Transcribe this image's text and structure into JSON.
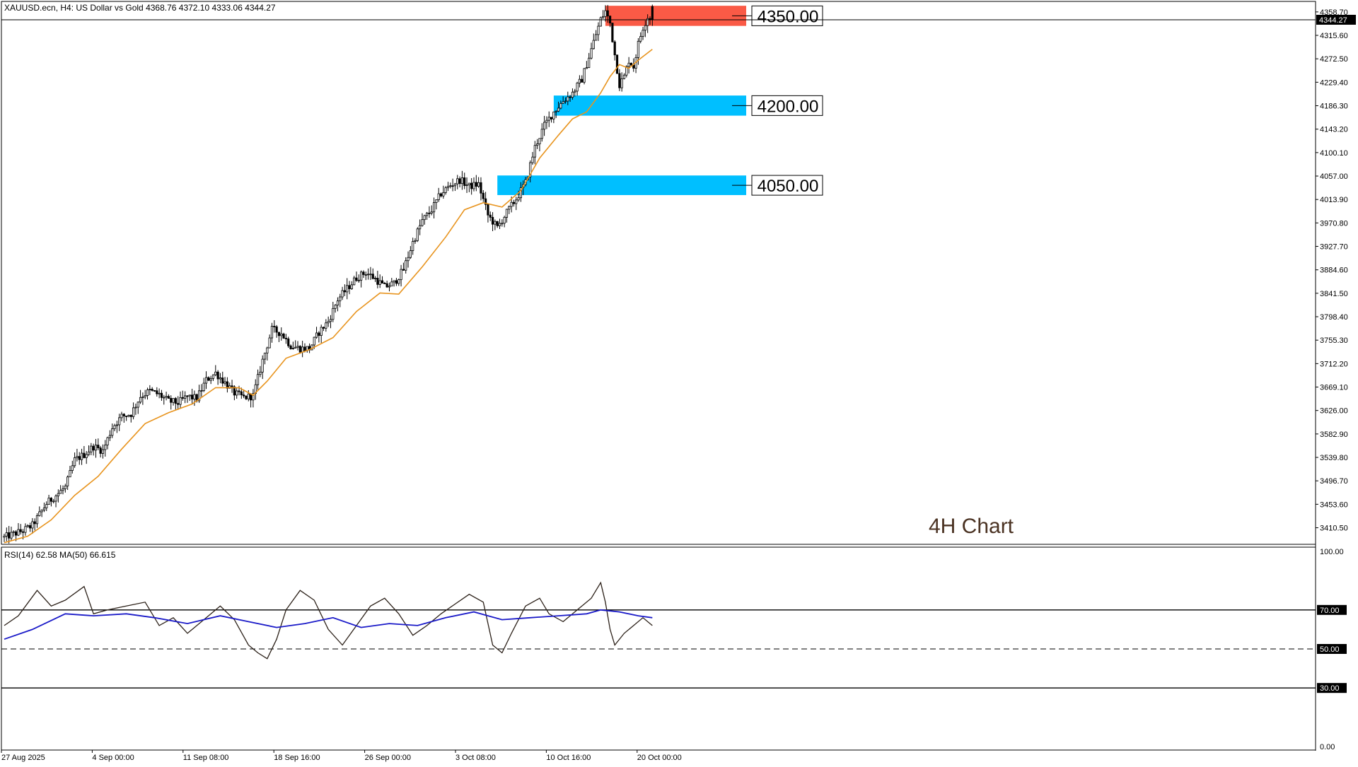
{
  "header": {
    "symbol_info": "XAUUSD.ecn, H4:  US Dollar vs Gold  4368.76 4372.10 4333.06 4344.27"
  },
  "chart_data": [
    {
      "type": "candlestick",
      "symbol": "XAUUSD.ecn",
      "timeframe": "H4",
      "ohlc": {
        "open": 4368.76,
        "high": 4372.1,
        "low": 4333.06,
        "close": 4344.27
      },
      "current_price_label": "4344.27",
      "overlay_label": "4H Chart",
      "ylim": [
        3380,
        4378
      ],
      "y_ticks": [
        "4358.70",
        "4315.60",
        "4272.50",
        "4229.40",
        "4186.30",
        "4143.20",
        "4100.10",
        "4057.00",
        "4013.90",
        "3970.80",
        "3927.70",
        "3884.60",
        "3841.50",
        "3798.40",
        "3755.30",
        "3712.20",
        "3669.10",
        "3626.00",
        "3582.90",
        "3539.80",
        "3496.70",
        "3453.60",
        "3410.50"
      ],
      "x_ticks": [
        "27 Aug 2025",
        "4 Sep 00:00",
        "11 Sep 08:00",
        "18 Sep 16:00",
        "26 Sep 00:00",
        "3 Oct 08:00",
        "10 Oct 16:00",
        "20 Oct 00:00"
      ],
      "moving_average_color": "#e8941e",
      "candle_color": "#000000",
      "close_path": [
        [
          0,
          3393
        ],
        [
          8,
          3405
        ],
        [
          12,
          3415
        ],
        [
          18,
          3455
        ],
        [
          22,
          3470
        ],
        [
          26,
          3485
        ],
        [
          30,
          3535
        ],
        [
          34,
          3545
        ],
        [
          38,
          3560
        ],
        [
          42,
          3552
        ],
        [
          46,
          3595
        ],
        [
          50,
          3615
        ],
        [
          54,
          3620
        ],
        [
          58,
          3652
        ],
        [
          62,
          3662
        ],
        [
          66,
          3655
        ],
        [
          70,
          3643
        ],
        [
          74,
          3640
        ],
        [
          78,
          3652
        ],
        [
          82,
          3648
        ],
        [
          86,
          3682
        ],
        [
          90,
          3695
        ],
        [
          94,
          3677
        ],
        [
          98,
          3658
        ],
        [
          102,
          3650
        ],
        [
          106,
          3653
        ],
        [
          110,
          3718
        ],
        [
          114,
          3775
        ],
        [
          118,
          3768
        ],
        [
          122,
          3745
        ],
        [
          126,
          3740
        ],
        [
          130,
          3740
        ],
        [
          134,
          3770
        ],
        [
          138,
          3790
        ],
        [
          142,
          3830
        ],
        [
          146,
          3850
        ],
        [
          150,
          3870
        ],
        [
          154,
          3880
        ],
        [
          158,
          3868
        ],
        [
          162,
          3853
        ],
        [
          166,
          3860
        ],
        [
          170,
          3885
        ],
        [
          174,
          3935
        ],
        [
          178,
          3975
        ],
        [
          182,
          3995
        ],
        [
          186,
          4025
        ],
        [
          190,
          4040
        ],
        [
          194,
          4050
        ],
        [
          198,
          4038
        ],
        [
          202,
          4042
        ],
        [
          206,
          3985
        ],
        [
          210,
          3962
        ],
        [
          214,
          3990
        ],
        [
          218,
          4015
        ],
        [
          222,
          4045
        ],
        [
          226,
          4110
        ],
        [
          230,
          4150
        ],
        [
          234,
          4175
        ],
        [
          238,
          4195
        ],
        [
          242,
          4210
        ],
        [
          246,
          4235
        ],
        [
          250,
          4290
        ],
        [
          254,
          4345
        ],
        [
          256,
          4360
        ],
        [
          258,
          4338
        ],
        [
          260,
          4280
        ],
        [
          262,
          4225
        ],
        [
          264,
          4240
        ],
        [
          266,
          4270
        ],
        [
          268,
          4258
        ],
        [
          270,
          4300
        ],
        [
          272,
          4330
        ],
        [
          274,
          4350
        ],
        [
          276,
          4344
        ]
      ],
      "ma_path": [
        [
          0,
          3383
        ],
        [
          10,
          3395
        ],
        [
          20,
          3425
        ],
        [
          30,
          3470
        ],
        [
          40,
          3505
        ],
        [
          50,
          3555
        ],
        [
          60,
          3602
        ],
        [
          70,
          3622
        ],
        [
          80,
          3638
        ],
        [
          90,
          3668
        ],
        [
          100,
          3668
        ],
        [
          106,
          3654
        ],
        [
          112,
          3680
        ],
        [
          120,
          3722
        ],
        [
          130,
          3738
        ],
        [
          140,
          3760
        ],
        [
          150,
          3808
        ],
        [
          160,
          3842
        ],
        [
          168,
          3840
        ],
        [
          178,
          3890
        ],
        [
          188,
          3945
        ],
        [
          196,
          3995
        ],
        [
          204,
          4008
        ],
        [
          212,
          4000
        ],
        [
          220,
          4030
        ],
        [
          228,
          4090
        ],
        [
          236,
          4132
        ],
        [
          242,
          4162
        ],
        [
          248,
          4175
        ],
        [
          254,
          4210
        ],
        [
          258,
          4240
        ],
        [
          262,
          4262
        ],
        [
          266,
          4255
        ],
        [
          270,
          4270
        ],
        [
          276,
          4290
        ]
      ],
      "zones": [
        {
          "label": "4350.00",
          "low": 4333,
          "high": 4370,
          "color": "#fa5a46",
          "from_bar": 256
        },
        {
          "label": "4200.00",
          "low": 4168,
          "high": 4205,
          "color": "#00bfff",
          "from_bar": 234
        },
        {
          "label": "4050.00",
          "low": 4022,
          "high": 4058,
          "color": "#00bfff",
          "from_bar": 210
        }
      ]
    },
    {
      "type": "line",
      "indicator": "RSI(14) 62.58 MA(50) 66.615",
      "ylim": [
        0,
        100
      ],
      "y_ticks": [
        "100.00",
        "70.00",
        "50.00",
        "30.00",
        "0.00"
      ],
      "levels": [
        70,
        50,
        30
      ],
      "series": [
        {
          "name": "RSI(14)",
          "color": "#2b2018",
          "path": [
            [
              0,
              62
            ],
            [
              6,
              67
            ],
            [
              14,
              80
            ],
            [
              20,
              72
            ],
            [
              26,
              75
            ],
            [
              34,
              82
            ],
            [
              38,
              68
            ],
            [
              44,
              70
            ],
            [
              52,
              72
            ],
            [
              60,
              74
            ],
            [
              66,
              62
            ],
            [
              72,
              66
            ],
            [
              78,
              58
            ],
            [
              84,
              64
            ],
            [
              92,
              72
            ],
            [
              98,
              65
            ],
            [
              104,
              52
            ],
            [
              108,
              48
            ],
            [
              112,
              45
            ],
            [
              116,
              55
            ],
            [
              120,
              70
            ],
            [
              126,
              80
            ],
            [
              132,
              75
            ],
            [
              138,
              60
            ],
            [
              144,
              52
            ],
            [
              150,
              62
            ],
            [
              156,
              72
            ],
            [
              162,
              76
            ],
            [
              168,
              68
            ],
            [
              174,
              57
            ],
            [
              180,
              62
            ],
            [
              186,
              68
            ],
            [
              192,
              73
            ],
            [
              198,
              78
            ],
            [
              204,
              74
            ],
            [
              208,
              52
            ],
            [
              212,
              48
            ],
            [
              216,
              58
            ],
            [
              222,
              72
            ],
            [
              228,
              76
            ],
            [
              232,
              68
            ],
            [
              238,
              64
            ],
            [
              244,
              70
            ],
            [
              250,
              76
            ],
            [
              254,
              84
            ],
            [
              256,
              74
            ],
            [
              258,
              60
            ],
            [
              260,
              52
            ],
            [
              264,
              58
            ],
            [
              268,
              62
            ],
            [
              272,
              66
            ],
            [
              276,
              62
            ]
          ]
        },
        {
          "name": "MA(50)",
          "color": "#1a1ac8",
          "path": [
            [
              0,
              55
            ],
            [
              12,
              60
            ],
            [
              26,
              68
            ],
            [
              38,
              67
            ],
            [
              52,
              68
            ],
            [
              64,
              66
            ],
            [
              78,
              63
            ],
            [
              92,
              67
            ],
            [
              104,
              64
            ],
            [
              116,
              61
            ],
            [
              128,
              63
            ],
            [
              140,
              66
            ],
            [
              152,
              61
            ],
            [
              164,
              63
            ],
            [
              176,
              62
            ],
            [
              188,
              66
            ],
            [
              200,
              69
            ],
            [
              212,
              65
            ],
            [
              224,
              66
            ],
            [
              236,
              67
            ],
            [
              248,
              68
            ],
            [
              254,
              70
            ],
            [
              262,
              69
            ],
            [
              270,
              67
            ],
            [
              276,
              66
            ]
          ]
        }
      ]
    }
  ]
}
